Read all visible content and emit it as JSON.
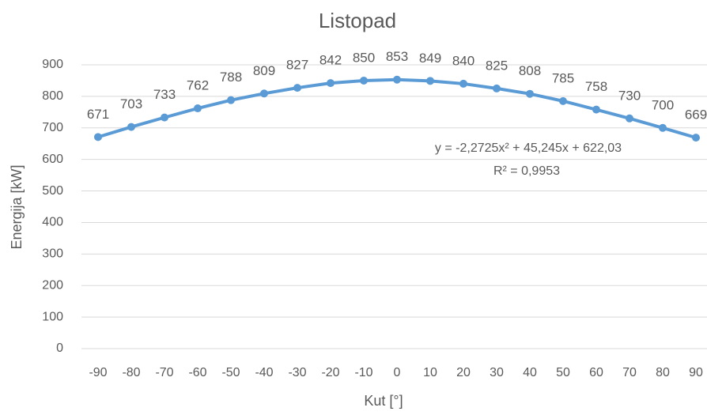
{
  "chart_data": {
    "type": "line",
    "title": "Listopad",
    "x_label": "Kut [°]",
    "y_label": "Energija [kW]",
    "categories": [
      "-90",
      "-80",
      "-70",
      "-60",
      "-50",
      "-40",
      "-30",
      "-20",
      "-10",
      "0",
      "10",
      "20",
      "30",
      "40",
      "50",
      "60",
      "70",
      "80",
      "90"
    ],
    "series": [
      {
        "name": "Listopad",
        "color": "#5b9bd5",
        "values": [
          671,
          703,
          733,
          762,
          788,
          809,
          827,
          842,
          850,
          853,
          849,
          840,
          825,
          808,
          785,
          758,
          730,
          700,
          669
        ]
      }
    ],
    "ylim": [
      0,
      900
    ],
    "yticks": [
      0,
      100,
      200,
      300,
      400,
      500,
      600,
      700,
      800,
      900
    ],
    "grid": true,
    "annotations": [
      "y = -2,2725x² + 45,245x + 622,03",
      "R² = 0,9953"
    ]
  }
}
